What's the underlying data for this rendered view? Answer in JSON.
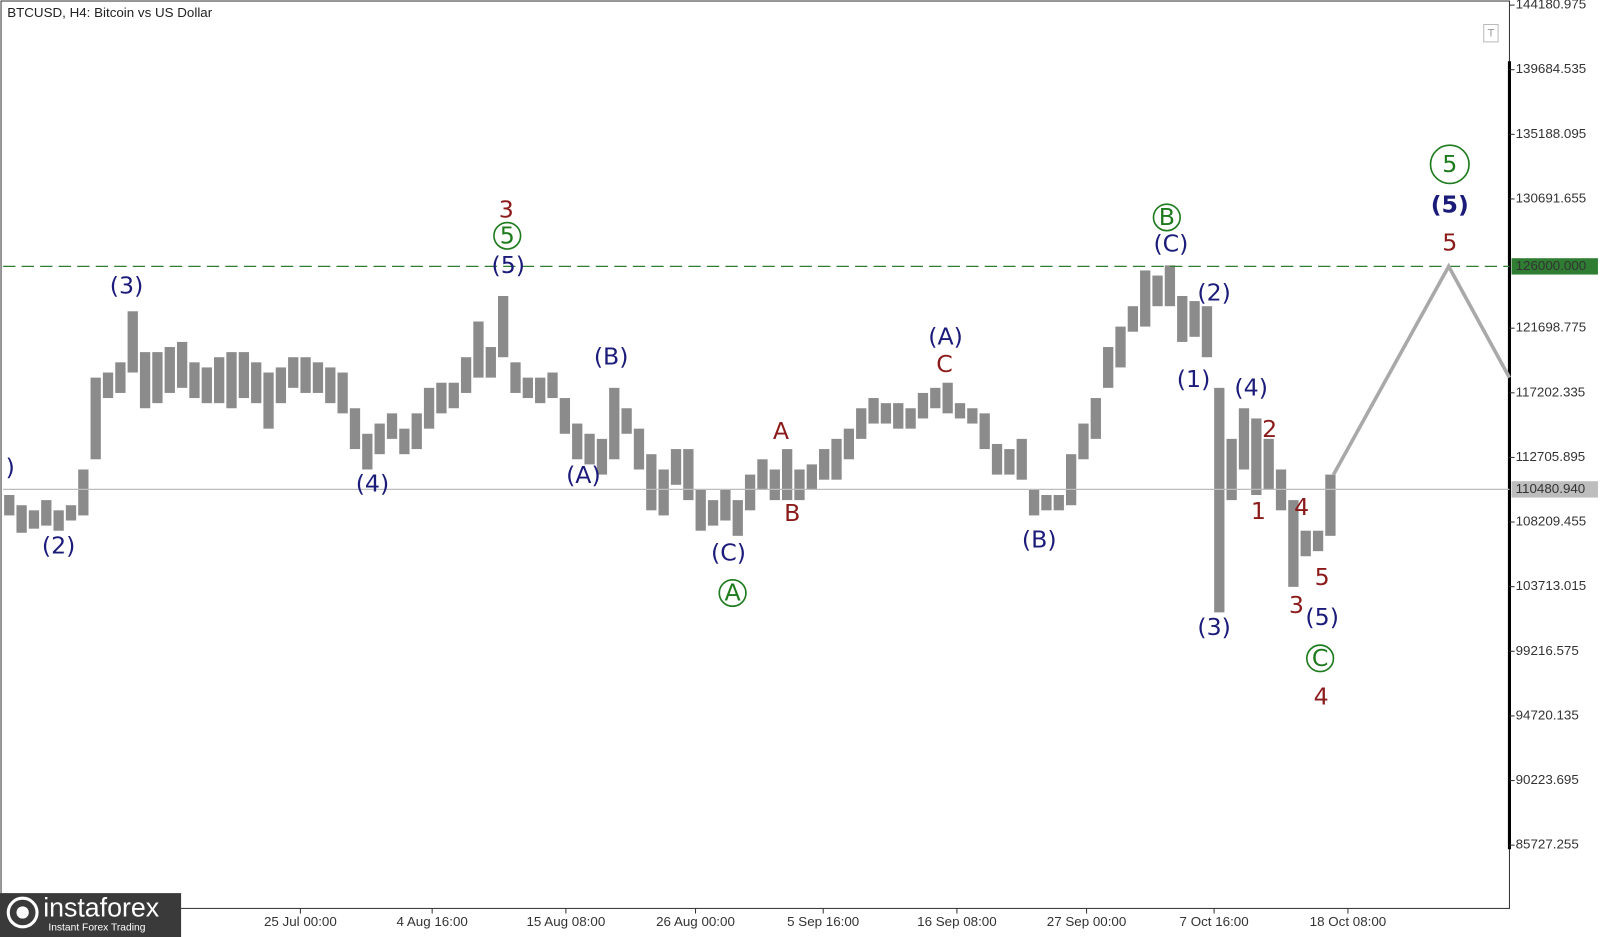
{
  "chart_data": {
    "type": "ohlc",
    "title": "BTCUSD, H4:  Bitcoin vs US Dollar",
    "color": "#6e6e6e",
    "x": [
      0,
      1,
      2,
      3,
      4,
      5,
      6,
      7,
      8,
      9,
      10,
      11,
      12,
      13,
      14,
      15,
      16,
      17,
      18,
      19,
      20,
      21,
      22,
      23,
      24,
      25,
      26,
      27,
      28,
      29,
      30,
      31,
      32,
      33,
      34,
      35,
      36,
      37,
      38,
      39,
      40,
      41,
      42,
      43,
      44,
      45,
      46,
      47,
      48,
      49,
      50,
      51,
      52,
      53,
      54,
      55,
      56,
      57,
      58,
      59,
      60,
      61,
      62,
      63,
      64,
      65,
      66,
      67,
      68,
      69,
      70,
      71,
      72,
      73,
      74,
      75,
      76,
      77,
      78,
      79,
      80,
      81,
      82,
      83,
      84,
      85,
      86,
      87,
      88,
      89,
      90,
      91,
      92,
      93,
      94,
      95,
      96,
      97,
      98,
      99,
      100,
      101,
      102,
      103,
      104,
      105,
      106,
      107
    ],
    "high": [
      110091,
      109381,
      109026,
      109736,
      109026,
      109381,
      111867,
      118259,
      118614,
      119324,
      122875,
      120034,
      120034,
      120389,
      120744,
      119324,
      118969,
      119679,
      120034,
      120034,
      119324,
      118614,
      118969,
      119679,
      119679,
      119324,
      118969,
      118614,
      116128,
      114352,
      115063,
      115773,
      114708,
      115773,
      117548,
      117904,
      117904,
      119679,
      122165,
      120389,
      123940,
      119324,
      118259,
      118259,
      118614,
      116838,
      115063,
      114352,
      113997,
      117548,
      116128,
      114708,
      112932,
      111867,
      113287,
      113287,
      110446,
      109736,
      110446,
      109736,
      111512,
      112577,
      111867,
      113287,
      111867,
      112222,
      113287,
      113997,
      114708,
      116128,
      116838,
      116483,
      116483,
      116128,
      117193,
      117548,
      117904,
      116483,
      116128,
      115773,
      113642,
      113287,
      113997,
      110446,
      110091,
      110091,
      112932,
      115063,
      116838,
      120389,
      121810,
      123230,
      125716,
      125361,
      126071,
      123940,
      123585,
      123230,
      117548,
      113997,
      116128,
      115418,
      113997,
      111867,
      109736,
      107606,
      107606,
      111512
    ],
    "low": [
      108671,
      107464,
      107748,
      107961,
      107606,
      108316,
      108671,
      112577,
      116838,
      117193,
      118614,
      116128,
      116483,
      117193,
      117548,
      116838,
      116483,
      116483,
      116128,
      116838,
      116483,
      114708,
      116483,
      117548,
      117193,
      117193,
      116483,
      115773,
      113287,
      111867,
      112932,
      113997,
      112932,
      113287,
      114708,
      115773,
      116128,
      117193,
      118259,
      118259,
      119679,
      117193,
      116838,
      116483,
      116838,
      114352,
      112577,
      112222,
      111512,
      112577,
      114352,
      111867,
      109026,
      108671,
      110801,
      109736,
      107606,
      107961,
      108316,
      107250,
      109026,
      110446,
      109736,
      109736,
      109736,
      110446,
      111157,
      111157,
      112577,
      113997,
      115063,
      115063,
      114708,
      114708,
      115418,
      116128,
      115773,
      115418,
      115063,
      113287,
      111512,
      111512,
      111157,
      108671,
      109026,
      109026,
      109381,
      112577,
      113997,
      117548,
      118969,
      121454,
      121810,
      123230,
      123230,
      120744,
      121099,
      119679,
      101924,
      109736,
      111867,
      110091,
      110446,
      109026,
      103699,
      105830,
      106185,
      107250
    ],
    "forecast": {
      "color": "#a9a9a9",
      "x": [
        107.25,
        116.58,
        121.5
      ],
      "values": [
        111512,
        126000,
        118259
      ]
    },
    "xlim": [
      -0.5,
      121.5
    ],
    "ylim": [
      81324,
      144536
    ],
    "yticks": [
      144180.975,
      139684.535,
      135188.095,
      130691.655,
      121698.775,
      117202.335,
      112705.895,
      108209.455,
      103713.015,
      99216.575,
      94720.135,
      90223.695,
      85727.255
    ],
    "xticks": [
      {
        "value": 23.58,
        "label": "25 Jul 00:00"
      },
      {
        "value": 34.25,
        "label": "4 Aug 16:00"
      },
      {
        "value": 45.08,
        "label": "15 Aug 08:00"
      },
      {
        "value": 55.58,
        "label": "26 Aug 00:00"
      },
      {
        "value": 65.92,
        "label": "5 Sep 16:00"
      },
      {
        "value": 76.75,
        "label": "16 Sep 08:00"
      },
      {
        "value": 87.25,
        "label": "27 Sep 00:00"
      },
      {
        "value": 97.58,
        "label": "7 Oct 16:00"
      },
      {
        "value": 108.42,
        "label": "18 Oct 08:00"
      }
    ],
    "levels": [
      {
        "value": 126000,
        "label": "126000.000",
        "color": "#2e7d32",
        "dashed": true
      },
      {
        "value": 110480.94,
        "label": "110480.940",
        "color": "#bdbdbd",
        "dashed": false
      }
    ],
    "annotations": [
      {
        "text": ")",
        "color": "#1b1b7a"
      },
      {
        "text": "(2)",
        "color": "#1b1b7a"
      },
      {
        "text": "(3)",
        "color": "#1b1b7a"
      },
      {
        "text": "(4)",
        "color": "#1b1b7a"
      },
      {
        "text": "3",
        "color": "#8b1a1a"
      },
      {
        "text": "5",
        "color": "#1e7b1e",
        "circled": true
      },
      {
        "text": "(5)",
        "color": "#1b1b7a"
      },
      {
        "text": "(B)",
        "color": "#1b1b7a"
      },
      {
        "text": "(A)",
        "color": "#1b1b7a"
      },
      {
        "text": "(C)",
        "color": "#1b1b7a"
      },
      {
        "text": "A",
        "color": "#1e7b1e",
        "circled": true
      },
      {
        "text": "A",
        "color": "#8b1a1a"
      },
      {
        "text": "B",
        "color": "#8b1a1a"
      },
      {
        "text": "(A)",
        "color": "#1b1b7a"
      },
      {
        "text": "C",
        "color": "#8b1a1a"
      },
      {
        "text": "(B)",
        "color": "#1b1b7a"
      },
      {
        "text": "B",
        "color": "#1e7b1e",
        "circled": true
      },
      {
        "text": "(C)",
        "color": "#1b1b7a"
      },
      {
        "text": "(2)",
        "color": "#1b1b7a"
      },
      {
        "text": "(1)",
        "color": "#1b1b7a"
      },
      {
        "text": "(4)",
        "color": "#1b1b7a"
      },
      {
        "text": "(3)",
        "color": "#1b1b7a"
      },
      {
        "text": "2",
        "color": "#8b1a1a"
      },
      {
        "text": "1",
        "color": "#8b1a1a"
      },
      {
        "text": "4",
        "color": "#8b1a1a"
      },
      {
        "text": "5",
        "color": "#8b1a1a"
      },
      {
        "text": "3",
        "color": "#8b1a1a"
      },
      {
        "text": "(5)",
        "color": "#1b1b7a"
      },
      {
        "text": "C",
        "color": "#1e7b1e",
        "circled": true
      },
      {
        "text": "4",
        "color": "#8b1a1a"
      },
      {
        "text": "5",
        "color": "#1e7b1e",
        "circled": true
      },
      {
        "text": "(5)",
        "color": "#1b1b7a"
      },
      {
        "text": "5",
        "color": "#8b1a1a"
      }
    ],
    "watermark": {
      "brand": "instaforex",
      "tagline": "Instant Forex Trading"
    }
  }
}
